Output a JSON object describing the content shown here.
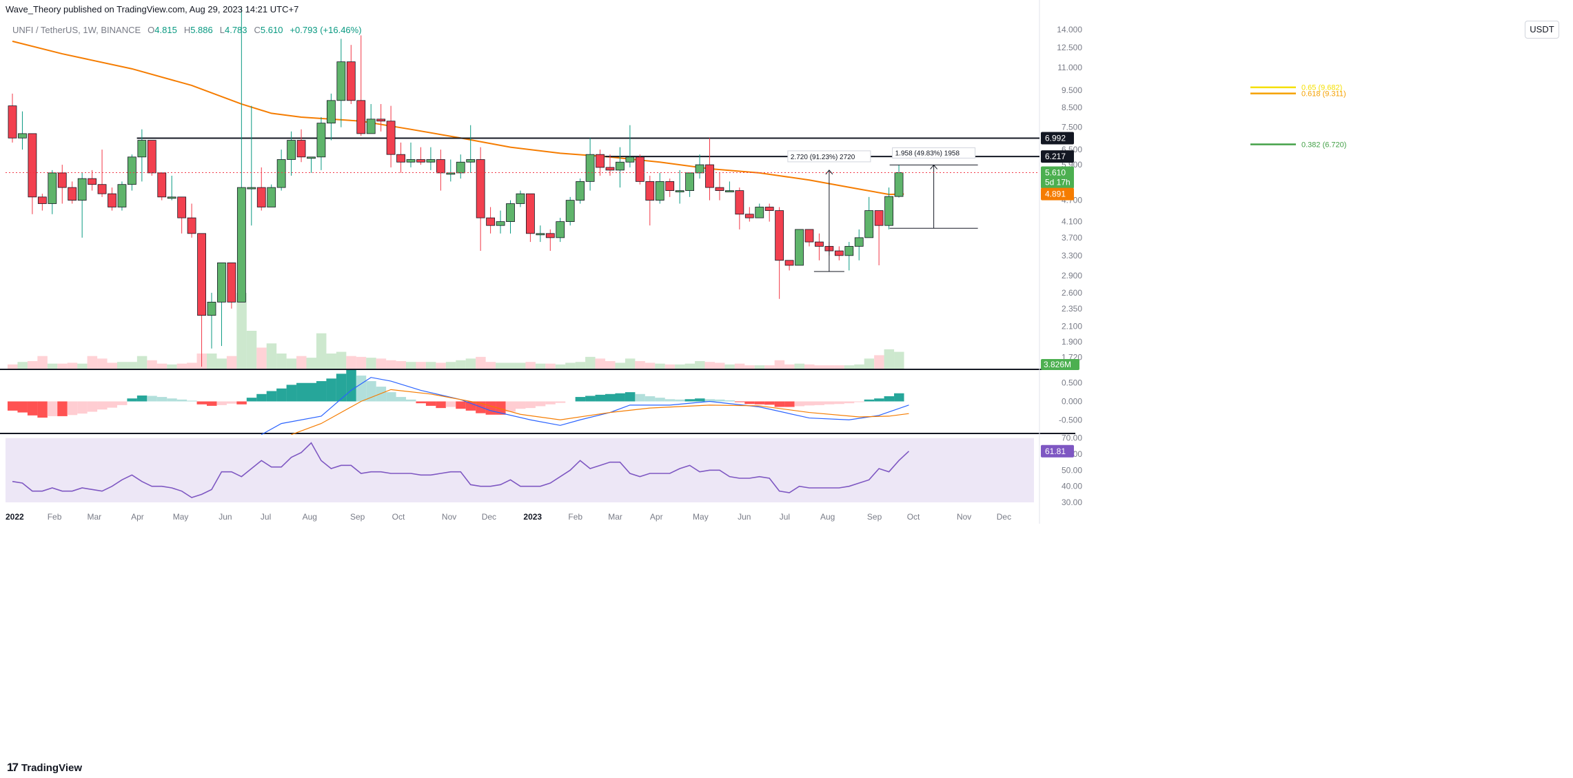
{
  "header": {
    "published": "Wave_Theory published on TradingView.com, Aug 29, 2023 14:21 UTC+7"
  },
  "symbol": {
    "title": "UNFI / TetherUS, 1W, BINANCE",
    "o_label": "O",
    "o": "4.815",
    "h_label": "H",
    "h": "5.886",
    "l_label": "L",
    "l": "4.783",
    "c_label": "C",
    "c": "5.610",
    "change": "+0.793 (+16.46%)"
  },
  "currency_button": "USDT",
  "brand": {
    "logo": "17",
    "name": "TradingView"
  },
  "colors": {
    "up": "#089981",
    "down": "#f23645",
    "up_body": "#5fb46b",
    "down_body": "#f2404f",
    "ema": "#f57c00",
    "macd": "#2962ff",
    "signal": "#f57c00",
    "rsi": "#7e57c2",
    "rsi_band": "#ede7f6",
    "fib_065": "#f5e000",
    "fib_0618": "#f5a000",
    "fib_0382": "#43a047"
  },
  "chart_data": [
    {
      "type": "candlestick",
      "title": "UNFI / TetherUS, 1W, BINANCE",
      "scale": "log",
      "ylim": [
        1.6,
        15.5
      ],
      "y_ticks": [
        "14.000",
        "12.500",
        "11.000",
        "9.500",
        "8.500",
        "7.500",
        "6.500",
        "5.900",
        "4.700",
        "4.100",
        "3.700",
        "3.300",
        "2.900",
        "2.600",
        "2.350",
        "2.100",
        "1.900",
        "1.720"
      ],
      "x_ticks": [
        "2022",
        "Feb",
        "Mar",
        "Apr",
        "May",
        "Jun",
        "Jul",
        "Aug",
        "Sep",
        "Oct",
        "Nov",
        "Dec",
        "2023",
        "Feb",
        "Mar",
        "Apr",
        "May",
        "Jun",
        "Jul",
        "Aug",
        "Sep",
        "Oct",
        "Nov",
        "Dec"
      ],
      "candles": [
        [
          8.6,
          9.3,
          6.8,
          7.0
        ],
        [
          7.0,
          8.3,
          6.5,
          7.2
        ],
        [
          7.2,
          7.2,
          4.3,
          4.8
        ],
        [
          4.8,
          4.9,
          4.4,
          4.6
        ],
        [
          4.6,
          5.7,
          4.3,
          5.6
        ],
        [
          5.6,
          5.9,
          4.6,
          5.1
        ],
        [
          5.1,
          5.3,
          4.6,
          4.7
        ],
        [
          4.7,
          5.6,
          3.7,
          5.4
        ],
        [
          5.4,
          5.7,
          5.0,
          5.2
        ],
        [
          5.2,
          6.5,
          4.8,
          4.9
        ],
        [
          4.9,
          5.1,
          4.4,
          4.5
        ],
        [
          4.5,
          5.3,
          4.4,
          5.2
        ],
        [
          5.2,
          6.3,
          5.0,
          6.2
        ],
        [
          6.2,
          7.4,
          5.3,
          6.9
        ],
        [
          6.9,
          6.9,
          5.5,
          5.6
        ],
        [
          5.6,
          5.6,
          4.7,
          4.8
        ],
        [
          4.8,
          5.5,
          4.7,
          4.8
        ],
        [
          4.8,
          4.8,
          3.8,
          4.2
        ],
        [
          4.2,
          4.6,
          3.7,
          3.8
        ],
        [
          3.8,
          3.8,
          0.9,
          2.25
        ],
        [
          2.25,
          2.6,
          1.82,
          2.45
        ],
        [
          2.45,
          3.0,
          1.85,
          3.15
        ],
        [
          3.15,
          3.15,
          2.35,
          2.45
        ],
        [
          2.45,
          16.5,
          2.45,
          5.1
        ],
        [
          5.1,
          8.6,
          4.0,
          5.1
        ],
        [
          5.1,
          5.8,
          4.4,
          4.5
        ],
        [
          4.5,
          5.2,
          4.5,
          5.1
        ],
        [
          5.1,
          6.5,
          5.0,
          6.1
        ],
        [
          6.1,
          7.3,
          5.5,
          6.9
        ],
        [
          6.9,
          7.4,
          6.0,
          6.2
        ],
        [
          6.2,
          6.2,
          5.6,
          6.2
        ],
        [
          6.2,
          8.0,
          5.7,
          7.7
        ],
        [
          7.7,
          9.3,
          6.9,
          8.9
        ],
        [
          8.9,
          13.2,
          7.5,
          11.4
        ],
        [
          11.4,
          12.7,
          8.7,
          8.9
        ],
        [
          8.9,
          13.5,
          7.1,
          7.2
        ],
        [
          7.2,
          8.7,
          7.2,
          7.9
        ],
        [
          7.9,
          8.7,
          7.3,
          7.8
        ],
        [
          7.8,
          8.6,
          5.8,
          6.3
        ],
        [
          6.3,
          6.8,
          5.6,
          6.0
        ],
        [
          6.0,
          6.8,
          5.8,
          6.1
        ],
        [
          6.1,
          6.6,
          5.9,
          6.0
        ],
        [
          6.0,
          6.6,
          5.7,
          6.1
        ],
        [
          6.1,
          6.5,
          5.0,
          5.6
        ],
        [
          5.6,
          6.1,
          5.3,
          5.6
        ],
        [
          5.6,
          6.3,
          5.4,
          6.0
        ],
        [
          6.0,
          7.6,
          5.6,
          6.1
        ],
        [
          6.1,
          6.6,
          3.4,
          4.2
        ],
        [
          4.2,
          4.5,
          3.8,
          4.0
        ],
        [
          4.0,
          4.4,
          3.8,
          4.1
        ],
        [
          4.1,
          4.7,
          3.8,
          4.6
        ],
        [
          4.6,
          5.0,
          4.5,
          4.9
        ],
        [
          4.9,
          4.9,
          3.6,
          3.8
        ],
        [
          3.8,
          4.0,
          3.6,
          3.8
        ],
        [
          3.8,
          3.9,
          3.4,
          3.7
        ],
        [
          3.7,
          4.2,
          3.6,
          4.1
        ],
        [
          4.1,
          4.8,
          4.0,
          4.7
        ],
        [
          4.7,
          5.4,
          4.6,
          5.3
        ],
        [
          5.3,
          7.0,
          5.0,
          6.3
        ],
        [
          6.3,
          6.5,
          5.5,
          5.8
        ],
        [
          5.8,
          6.3,
          5.5,
          5.7
        ],
        [
          5.7,
          6.6,
          5.1,
          6.0
        ],
        [
          6.0,
          7.6,
          5.8,
          6.2
        ],
        [
          6.2,
          6.3,
          5.2,
          5.3
        ],
        [
          5.3,
          5.5,
          4.0,
          4.7
        ],
        [
          4.7,
          5.6,
          4.6,
          5.3
        ],
        [
          5.3,
          5.4,
          4.8,
          5.0
        ],
        [
          5.0,
          5.7,
          4.6,
          5.0
        ],
        [
          5.0,
          5.6,
          4.8,
          5.6
        ],
        [
          5.6,
          6.3,
          5.4,
          5.9
        ],
        [
          5.9,
          7.0,
          4.7,
          5.1
        ],
        [
          5.1,
          5.6,
          4.7,
          5.0
        ],
        [
          5.0,
          5.3,
          5.0,
          5.0
        ],
        [
          5.0,
          5.1,
          3.9,
          4.3
        ],
        [
          4.3,
          4.5,
          4.1,
          4.2
        ],
        [
          4.2,
          4.6,
          4.2,
          4.5
        ],
        [
          4.5,
          4.6,
          4.1,
          4.4
        ],
        [
          4.4,
          4.5,
          2.5,
          3.2
        ],
        [
          3.2,
          3.2,
          3.0,
          3.1
        ],
        [
          3.1,
          3.9,
          3.1,
          3.9
        ],
        [
          3.9,
          3.9,
          3.5,
          3.6
        ],
        [
          3.6,
          3.8,
          3.2,
          3.5
        ],
        [
          3.5,
          3.6,
          3.3,
          3.4
        ],
        [
          3.4,
          3.5,
          3.2,
          3.3
        ],
        [
          3.3,
          3.6,
          3.0,
          3.5
        ],
        [
          3.5,
          3.9,
          3.2,
          3.7
        ],
        [
          3.7,
          4.8,
          3.7,
          4.4
        ],
        [
          4.4,
          4.4,
          3.1,
          4.0
        ],
        [
          4.0,
          5.1,
          3.9,
          4.815
        ],
        [
          4.815,
          5.886,
          4.783,
          5.61
        ]
      ],
      "ema": [
        [
          0,
          13.0
        ],
        [
          5,
          12.0
        ],
        [
          12,
          10.9
        ],
        [
          18,
          9.8
        ],
        [
          23,
          8.7
        ],
        [
          26,
          8.2
        ],
        [
          29,
          8.0
        ],
        [
          32,
          7.9
        ],
        [
          35,
          7.8
        ],
        [
          40,
          7.4
        ],
        [
          45,
          7.0
        ],
        [
          50,
          6.6
        ],
        [
          55,
          6.35
        ],
        [
          60,
          6.2
        ],
        [
          65,
          6.0
        ],
        [
          70,
          5.75
        ],
        [
          75,
          5.6
        ],
        [
          80,
          5.35
        ],
        [
          85,
          5.05
        ],
        [
          88,
          4.88
        ],
        [
          89.5,
          4.89
        ]
      ],
      "horizontal_levels": [
        {
          "label": "6.992",
          "value": 6.992,
          "start": 12.5
        },
        {
          "label": "6.217",
          "value": 6.217,
          "start": 59.5
        }
      ],
      "fib_levels": [
        {
          "label": "0.65 (9.682)",
          "value": 9.682,
          "color_key": "fib_065"
        },
        {
          "label": "0.618 (9.311)",
          "value": 9.311,
          "color_key": "fib_0618"
        },
        {
          "label": "0.382 (6.720)",
          "value": 6.72,
          "color_key": "fib_0382"
        }
      ],
      "measures": [
        {
          "label": "2.720 (91.23%) 2720",
          "index": 82,
          "low": 2.98,
          "high": 5.7
        },
        {
          "label": "1.958 (49.83%) 1958",
          "index": 92.5,
          "low": 3.93,
          "high": 5.89
        }
      ],
      "current_price": {
        "label": "5.610",
        "countdown": "5d 17h",
        "value": 5.61
      },
      "ema_price": {
        "label": "4.891",
        "value": 4.891
      },
      "volume": {
        "label": "3.826M",
        "values": [
          0.5,
          0.8,
          0.9,
          1.5,
          0.6,
          0.6,
          0.7,
          0.6,
          1.5,
          1.2,
          0.7,
          0.8,
          0.8,
          1.5,
          1.0,
          0.6,
          0.5,
          0.6,
          0.7,
          1.8,
          1.8,
          1.2,
          1.5,
          9.0,
          4.5,
          2.5,
          3.0,
          1.8,
          1.2,
          1.5,
          1.3,
          4.2,
          1.8,
          2.0,
          1.5,
          1.4,
          1.3,
          1.2,
          1.0,
          0.9,
          0.8,
          0.8,
          0.8,
          0.7,
          0.8,
          1.0,
          1.2,
          1.4,
          0.8,
          0.7,
          0.7,
          0.7,
          0.8,
          0.6,
          0.6,
          0.5,
          0.7,
          0.8,
          1.4,
          1.2,
          0.9,
          0.7,
          1.2,
          0.9,
          0.7,
          0.6,
          0.5,
          0.5,
          0.6,
          0.9,
          0.8,
          0.7,
          0.5,
          0.6,
          0.4,
          0.4,
          0.4,
          1.0,
          0.5,
          0.6,
          0.5,
          0.4,
          0.4,
          0.4,
          0.4,
          0.5,
          1.2,
          1.6,
          2.3,
          2.0
        ]
      }
    },
    {
      "type": "bar",
      "title": "MACD",
      "ylim": [
        -0.85,
        0.85
      ],
      "y_ticks": [
        "0.500",
        "0.000",
        "-0.500"
      ],
      "histogram": [
        -0.25,
        -0.3,
        -0.38,
        -0.44,
        -0.4,
        -0.4,
        -0.37,
        -0.33,
        -0.28,
        -0.22,
        -0.17,
        -0.1,
        0.08,
        0.16,
        0.15,
        0.12,
        0.08,
        0.05,
        0.02,
        -0.08,
        -0.12,
        -0.1,
        -0.06,
        -0.08,
        0.1,
        0.2,
        0.28,
        0.35,
        0.45,
        0.5,
        0.5,
        0.55,
        0.62,
        0.75,
        0.85,
        0.7,
        0.55,
        0.4,
        0.25,
        0.12,
        0.05,
        -0.05,
        -0.12,
        -0.18,
        -0.15,
        -0.2,
        -0.25,
        -0.32,
        -0.36,
        -0.36,
        -0.28,
        -0.2,
        -0.18,
        -0.13,
        -0.08,
        -0.04,
        0.0,
        0.12,
        0.15,
        0.18,
        0.2,
        0.22,
        0.25,
        0.2,
        0.14,
        0.1,
        0.06,
        0.05,
        0.06,
        0.08,
        0.06,
        0.05,
        0.03,
        -0.02,
        -0.07,
        -0.08,
        -0.09,
        -0.15,
        -0.15,
        -0.13,
        -0.11,
        -0.1,
        -0.08,
        -0.07,
        -0.05,
        -0.02,
        0.05,
        0.08,
        0.14,
        0.22
      ],
      "macd_line": [
        [
          25,
          -0.9
        ],
        [
          27,
          -0.6
        ],
        [
          31,
          -0.4
        ],
        [
          34,
          0.3
        ],
        [
          36,
          0.65
        ],
        [
          38,
          0.55
        ],
        [
          41,
          0.3
        ],
        [
          45,
          0.05
        ],
        [
          48,
          -0.25
        ],
        [
          52,
          -0.5
        ],
        [
          55,
          -0.65
        ],
        [
          57,
          -0.5
        ],
        [
          60,
          -0.3
        ],
        [
          62,
          -0.1
        ],
        [
          66,
          -0.1
        ],
        [
          70,
          0.0
        ],
        [
          75,
          -0.15
        ],
        [
          80,
          -0.45
        ],
        [
          84,
          -0.5
        ],
        [
          87,
          -0.38
        ],
        [
          90,
          -0.1
        ]
      ],
      "signal_line": [
        [
          28,
          -0.9
        ],
        [
          31,
          -0.6
        ],
        [
          35,
          0.0
        ],
        [
          38,
          0.32
        ],
        [
          42,
          0.2
        ],
        [
          47,
          -0.05
        ],
        [
          51,
          -0.35
        ],
        [
          55,
          -0.5
        ],
        [
          60,
          -0.3
        ],
        [
          64,
          -0.18
        ],
        [
          70,
          -0.1
        ],
        [
          75,
          -0.12
        ],
        [
          80,
          -0.3
        ],
        [
          85,
          -0.42
        ],
        [
          88,
          -0.4
        ],
        [
          90,
          -0.33
        ]
      ]
    },
    {
      "type": "line",
      "title": "RSI",
      "ylim": [
        27,
        72
      ],
      "y_ticks": [
        "70.00",
        "60.00",
        "50.00",
        "40.00",
        "30.00"
      ],
      "rsi_label": "61.81",
      "values": [
        43,
        42,
        37,
        37,
        39,
        37,
        37,
        39,
        38,
        37,
        40,
        44,
        47,
        43,
        40,
        40,
        39,
        37,
        33,
        35,
        38,
        49,
        49,
        46,
        51,
        56,
        52,
        52,
        58,
        61,
        67,
        56,
        51,
        53,
        53,
        48,
        49,
        49,
        48,
        48,
        48,
        47,
        47,
        48,
        49,
        49,
        41,
        40,
        40,
        41,
        44,
        40,
        40,
        40,
        42,
        46,
        50,
        56,
        51,
        53,
        55,
        55,
        48,
        46,
        48,
        48,
        48,
        51,
        53,
        49,
        50,
        50,
        46,
        45,
        45,
        46,
        45,
        37,
        36,
        40,
        39,
        39,
        39,
        39,
        40,
        42,
        44,
        51,
        49,
        56,
        61.81
      ]
    }
  ]
}
